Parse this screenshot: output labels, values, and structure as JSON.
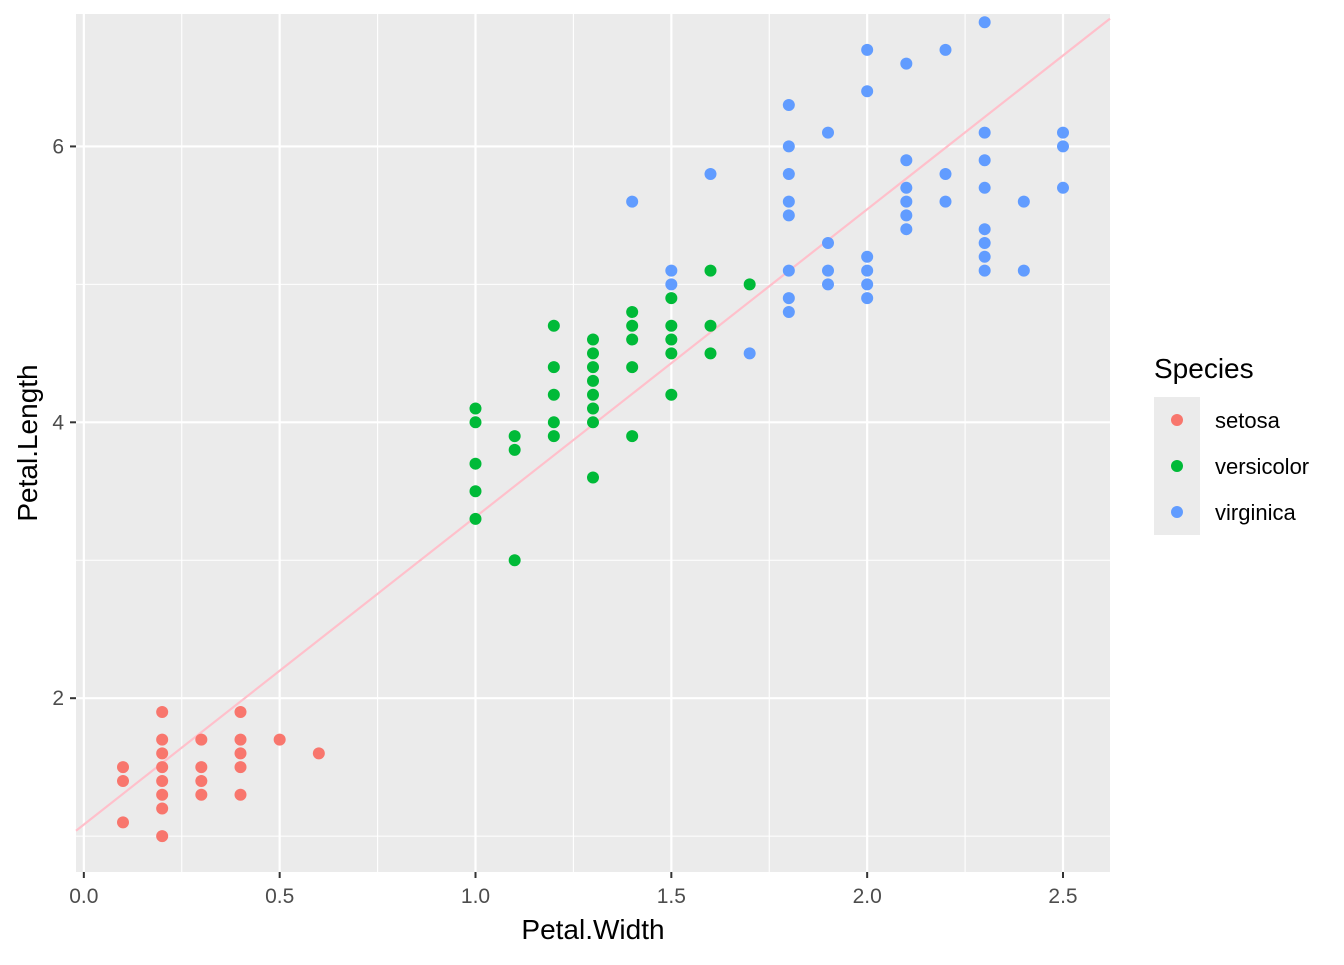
{
  "chart_data": {
    "type": "scatter",
    "title": "",
    "xlabel": "Petal.Width",
    "ylabel": "Petal.Length",
    "xlim": [
      -0.02,
      2.62
    ],
    "ylim": [
      0.74,
      6.96
    ],
    "x_ticks": [
      0.0,
      0.5,
      1.0,
      1.5,
      2.0,
      2.5
    ],
    "x_tick_labels": [
      "0.0",
      "0.5",
      "1.0",
      "1.5",
      "2.0",
      "2.5"
    ],
    "y_ticks": [
      2,
      4,
      6
    ],
    "y_tick_labels": [
      "2",
      "4",
      "6"
    ],
    "grid": true,
    "legend": {
      "title": "Species",
      "position": "right"
    },
    "series": [
      {
        "name": "setosa",
        "color": "#F8766D",
        "points": [
          [
            0.1,
            1.1
          ],
          [
            0.1,
            1.4
          ],
          [
            0.1,
            1.5
          ],
          [
            0.2,
            1.0
          ],
          [
            0.2,
            1.2
          ],
          [
            0.2,
            1.3
          ],
          [
            0.2,
            1.4
          ],
          [
            0.2,
            1.5
          ],
          [
            0.2,
            1.6
          ],
          [
            0.2,
            1.7
          ],
          [
            0.2,
            1.9
          ],
          [
            0.3,
            1.3
          ],
          [
            0.3,
            1.4
          ],
          [
            0.3,
            1.5
          ],
          [
            0.3,
            1.7
          ],
          [
            0.4,
            1.3
          ],
          [
            0.4,
            1.5
          ],
          [
            0.4,
            1.6
          ],
          [
            0.4,
            1.7
          ],
          [
            0.4,
            1.9
          ],
          [
            0.5,
            1.7
          ],
          [
            0.6,
            1.6
          ]
        ]
      },
      {
        "name": "versicolor",
        "color": "#00BA38",
        "points": [
          [
            1.0,
            3.3
          ],
          [
            1.0,
            3.5
          ],
          [
            1.0,
            3.7
          ],
          [
            1.0,
            4.0
          ],
          [
            1.0,
            4.1
          ],
          [
            1.1,
            3.0
          ],
          [
            1.1,
            3.8
          ],
          [
            1.1,
            3.9
          ],
          [
            1.2,
            3.9
          ],
          [
            1.2,
            4.0
          ],
          [
            1.2,
            4.2
          ],
          [
            1.2,
            4.4
          ],
          [
            1.2,
            4.7
          ],
          [
            1.3,
            3.6
          ],
          [
            1.3,
            4.0
          ],
          [
            1.3,
            4.1
          ],
          [
            1.3,
            4.2
          ],
          [
            1.3,
            4.3
          ],
          [
            1.3,
            4.4
          ],
          [
            1.3,
            4.5
          ],
          [
            1.3,
            4.6
          ],
          [
            1.4,
            3.9
          ],
          [
            1.4,
            4.4
          ],
          [
            1.4,
            4.6
          ],
          [
            1.4,
            4.7
          ],
          [
            1.4,
            4.8
          ],
          [
            1.5,
            4.2
          ],
          [
            1.5,
            4.5
          ],
          [
            1.5,
            4.6
          ],
          [
            1.5,
            4.7
          ],
          [
            1.5,
            4.9
          ],
          [
            1.6,
            4.5
          ],
          [
            1.6,
            4.7
          ],
          [
            1.6,
            5.1
          ],
          [
            1.7,
            5.0
          ]
        ]
      },
      {
        "name": "virginica",
        "color": "#619CFF",
        "points": [
          [
            1.4,
            5.6
          ],
          [
            1.5,
            5.0
          ],
          [
            1.5,
            5.1
          ],
          [
            1.6,
            5.8
          ],
          [
            1.7,
            4.5
          ],
          [
            1.8,
            4.8
          ],
          [
            1.8,
            4.9
          ],
          [
            1.8,
            5.1
          ],
          [
            1.8,
            5.5
          ],
          [
            1.8,
            5.6
          ],
          [
            1.8,
            5.8
          ],
          [
            1.8,
            6.0
          ],
          [
            1.8,
            6.3
          ],
          [
            1.9,
            5.0
          ],
          [
            1.9,
            5.1
          ],
          [
            1.9,
            5.3
          ],
          [
            1.9,
            6.1
          ],
          [
            2.0,
            4.9
          ],
          [
            2.0,
            5.0
          ],
          [
            2.0,
            5.1
          ],
          [
            2.0,
            5.2
          ],
          [
            2.0,
            6.4
          ],
          [
            2.0,
            6.7
          ],
          [
            2.1,
            5.4
          ],
          [
            2.1,
            5.5
          ],
          [
            2.1,
            5.6
          ],
          [
            2.1,
            5.7
          ],
          [
            2.1,
            5.9
          ],
          [
            2.1,
            6.6
          ],
          [
            2.2,
            5.6
          ],
          [
            2.2,
            5.8
          ],
          [
            2.2,
            6.7
          ],
          [
            2.3,
            5.1
          ],
          [
            2.3,
            5.2
          ],
          [
            2.3,
            5.3
          ],
          [
            2.3,
            5.4
          ],
          [
            2.3,
            5.7
          ],
          [
            2.3,
            5.9
          ],
          [
            2.3,
            6.1
          ],
          [
            2.3,
            6.9
          ],
          [
            2.4,
            5.1
          ],
          [
            2.4,
            5.6
          ],
          [
            2.5,
            5.7
          ],
          [
            2.5,
            6.0
          ],
          [
            2.5,
            6.1
          ]
        ]
      }
    ],
    "fit_line": {
      "color": "#FFC0CB",
      "intercept": 1.084,
      "slope": 2.23
    },
    "panel_background": "#EBEBEB",
    "grid_color": "#FFFFFF"
  }
}
